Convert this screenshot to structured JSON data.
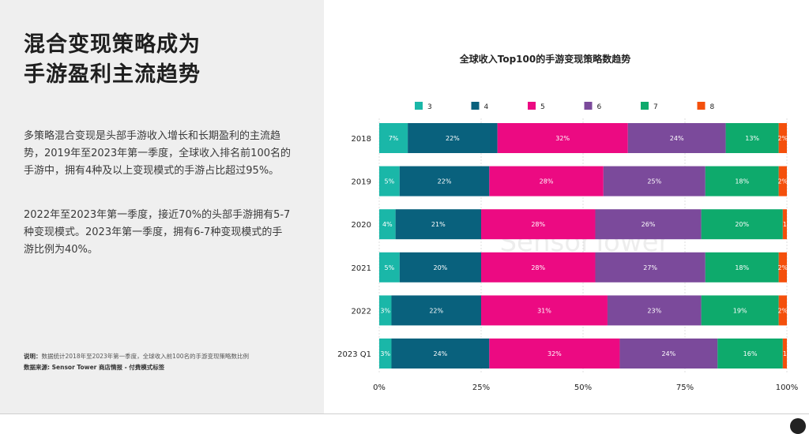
{
  "left": {
    "headline_line1": "混合变现策略成为",
    "headline_line2": "手游盈利主流趋势",
    "para1": "多策略混合变现是头部手游收入增长和长期盈利的主流趋势，2019年至2023年第一季度，全球收入排名前100名的手游中，拥有4种及以上变现模式的手游占比超过95%。",
    "para2": "2022年至2023年第一季度，接近70%的头部手游拥有5-7种变现模式。2023年第一季度，拥有6-7种变现模式的手游比例为40%。",
    "note_label": "说明：",
    "note_text": "数据统计2018年至2023年第一季度，全球收入前100名的手游变现策略数比例",
    "source_label": "数据来源: ",
    "source_text": "Sensor Tower 商店情报 - 付费模式标签"
  },
  "watermark": "SensorTower",
  "chart_data": {
    "type": "bar",
    "orientation": "horizontal",
    "stacked": true,
    "title": "全球收入Top100的手游变现策略数趋势",
    "categories": [
      "2018",
      "2019",
      "2020",
      "2021",
      "2022",
      "2023 Q1"
    ],
    "series": [
      {
        "name": "3",
        "color": "#1ab7a8",
        "values": [
          7,
          5,
          4,
          5,
          3,
          3
        ],
        "labels": [
          "7%",
          "5%",
          "4%",
          "5%",
          "3%",
          "3%"
        ]
      },
      {
        "name": "4",
        "color": "#09617d",
        "values": [
          22,
          22,
          21,
          20,
          22,
          24
        ],
        "labels": [
          "22%",
          "22%",
          "21%",
          "20%",
          "22%",
          "24%"
        ]
      },
      {
        "name": "5",
        "color": "#ec0a82",
        "values": [
          32,
          28,
          28,
          28,
          31,
          32
        ],
        "labels": [
          "32%",
          "28%",
          "28%",
          "28%",
          "31%",
          "32%"
        ]
      },
      {
        "name": "6",
        "color": "#7b4a9b",
        "values": [
          24,
          25,
          26,
          27,
          23,
          24
        ],
        "labels": [
          "24%",
          "25%",
          "26%",
          "27%",
          "23%",
          "24%"
        ]
      },
      {
        "name": "7",
        "color": "#0eaa6c",
        "values": [
          13,
          18,
          20,
          18,
          19,
          16
        ],
        "labels": [
          "13%",
          "18%",
          "20%",
          "18%",
          "19%",
          "16%"
        ]
      },
      {
        "name": "8",
        "color": "#f4500c",
        "values": [
          2,
          2,
          1,
          2,
          2,
          1
        ],
        "labels": [
          "2%",
          "2%",
          "1",
          "2%",
          "2%",
          "1"
        ]
      }
    ],
    "xticks": [
      "0%",
      "25%",
      "50%",
      "75%",
      "100%"
    ],
    "xlim": [
      0,
      100
    ],
    "legend": "top",
    "grid": true
  }
}
